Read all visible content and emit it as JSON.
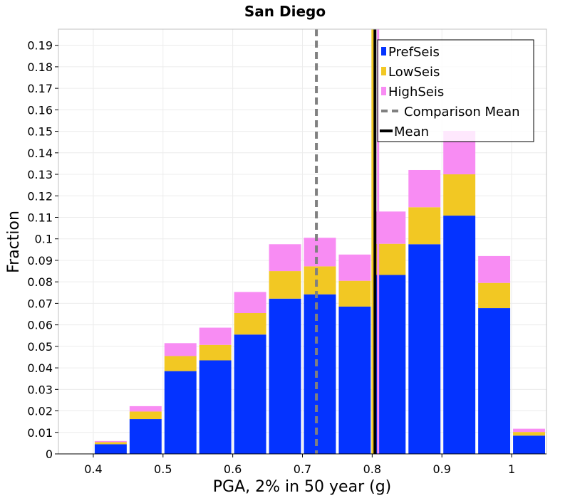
{
  "chart_data": {
    "type": "bar",
    "stacked": true,
    "title": "San Diego",
    "xlabel": "PGA, 2% in 50 year (g)",
    "ylabel": "Fraction",
    "xlim": [
      0.35,
      1.05
    ],
    "ylim": [
      0,
      0.1975
    ],
    "xticks": [
      "0.4",
      "0.5",
      "0.6",
      "0.7",
      "0.8",
      "0.9",
      "1"
    ],
    "xtick_values": [
      0.4,
      0.5,
      0.6,
      0.7,
      0.8,
      0.9,
      1.0
    ],
    "yticks": [
      "0",
      "0.01",
      "0.02",
      "0.03",
      "0.04",
      "0.05",
      "0.06",
      "0.07",
      "0.08",
      "0.09",
      "0.1",
      "0.11",
      "0.12",
      "0.13",
      "0.14",
      "0.15",
      "0.16",
      "0.17",
      "0.18",
      "0.19"
    ],
    "ytick_values": [
      0,
      0.01,
      0.02,
      0.03,
      0.04,
      0.05,
      0.06,
      0.07,
      0.08,
      0.09,
      0.1,
      0.11,
      0.12,
      0.13,
      0.14,
      0.15,
      0.16,
      0.17,
      0.18,
      0.19
    ],
    "bin_width": 0.05,
    "bin_centers": [
      0.375,
      0.425,
      0.475,
      0.525,
      0.575,
      0.625,
      0.675,
      0.725,
      0.775,
      0.825,
      0.875,
      0.925,
      0.975,
      1.025
    ],
    "series": [
      {
        "name": "PrefSeis",
        "color": "#0433ff",
        "values": [
          0,
          0.0045,
          0.0162,
          0.0385,
          0.0435,
          0.0555,
          0.0722,
          0.0742,
          0.0685,
          0.0832,
          0.0975,
          0.1108,
          0.0678,
          0.0085
        ]
      },
      {
        "name": "LowSeis",
        "color": "#f2c823",
        "values": [
          0,
          0.001,
          0.0035,
          0.007,
          0.0072,
          0.01,
          0.0128,
          0.013,
          0.012,
          0.0145,
          0.0172,
          0.0192,
          0.0117,
          0.0017
        ]
      },
      {
        "name": "HighSeis",
        "color": "#f88cf3",
        "values": [
          0,
          0.0005,
          0.0025,
          0.006,
          0.008,
          0.0098,
          0.0125,
          0.0133,
          0.0122,
          0.015,
          0.0173,
          0.0202,
          0.0125,
          0.0015
        ]
      }
    ],
    "lines": [
      {
        "name": "Comparison Mean",
        "x": 0.72,
        "color": "#808080",
        "style": "dashed"
      },
      {
        "name": "Mean",
        "x": 0.804,
        "color": "#000000",
        "style": "solid"
      }
    ],
    "series_mean_lines": [
      {
        "name": "LowSeis",
        "x": 0.8005,
        "color": "#f2c823"
      },
      {
        "name": "HighSeis",
        "x": 0.8085,
        "color": "#f88cf3"
      }
    ],
    "legend": {
      "position": "top-right",
      "entries": [
        {
          "label": "PrefSeis",
          "kind": "box",
          "color": "#0433ff"
        },
        {
          "label": "LowSeis",
          "kind": "box",
          "color": "#f2c823"
        },
        {
          "label": "HighSeis",
          "kind": "box",
          "color": "#f88cf3"
        },
        {
          "label": "Comparison Mean",
          "kind": "dash",
          "color": "#808080"
        },
        {
          "label": "Mean",
          "kind": "line",
          "color": "#000000"
        }
      ]
    },
    "grid": true
  }
}
